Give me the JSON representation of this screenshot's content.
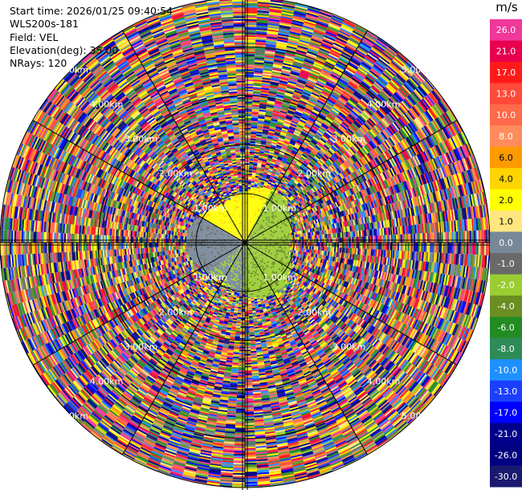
{
  "header": {
    "start_time": "Start time: 2026/01/25 09:40:54",
    "instrument": "WLS200s-181",
    "field": "Field: VEL",
    "elevation": "Elevation(deg): 35.00",
    "nrays": "NRays: 120"
  },
  "colorbar": {
    "units": "m/s",
    "levels": [
      {
        "label": "26.0",
        "color": "#f0379a"
      },
      {
        "label": "21.0",
        "color": "#e8004f"
      },
      {
        "label": "17.0",
        "color": "#ff1a1a"
      },
      {
        "label": "13.0",
        "color": "#ff4a3a"
      },
      {
        "label": "10.0",
        "color": "#ff6a4a"
      },
      {
        "label": "8.0",
        "color": "#ff8c5a"
      },
      {
        "label": "6.0",
        "color": "#ff9a00"
      },
      {
        "label": "4.0",
        "color": "#ffd400"
      },
      {
        "label": "2.0",
        "color": "#ffff00"
      },
      {
        "label": "1.0",
        "color": "#ffe680"
      },
      {
        "label": "0.0",
        "color": "#778899"
      },
      {
        "label": "-1.0",
        "color": "#696969"
      },
      {
        "label": "-2.0",
        "color": "#9acd32"
      },
      {
        "label": "-4.0",
        "color": "#6b8e23"
      },
      {
        "label": "-6.0",
        "color": "#228b22"
      },
      {
        "label": "-8.0",
        "color": "#2e8b57"
      },
      {
        "label": "-10.0",
        "color": "#1e90ff"
      },
      {
        "label": "-13.0",
        "color": "#1c3fff"
      },
      {
        "label": "-17.0",
        "color": "#0000ff"
      },
      {
        "label": "-21.0",
        "color": "#00008b"
      },
      {
        "label": "-26.0",
        "color": "#000080"
      },
      {
        "label": "-30.0",
        "color": "#191970"
      }
    ]
  },
  "chart_data": {
    "type": "heatmap",
    "title": "",
    "field": "VEL",
    "units": "m/s",
    "elevation_deg": 35.0,
    "nrays": 120,
    "range_ring_labels": [
      "1.00km",
      "2.00km",
      "3.00km",
      "4.00km",
      "5.00km"
    ],
    "range_rings_km": [
      1,
      2,
      3,
      4,
      5
    ],
    "max_range_km": 5.0,
    "grid": true,
    "description_regions": [
      {
        "sector": "north-west / north",
        "range_km": [
          0,
          1.0
        ],
        "velocity": "positive ~1 to 2 m/s (yellow)"
      },
      {
        "sector": "east / south",
        "range_km": [
          0,
          1.0
        ],
        "velocity": "negative ~ -2 to -4 m/s (green)"
      },
      {
        "sector": "south-west",
        "range_km": [
          0,
          1.0
        ],
        "velocity": "~0 to -1 m/s (grey)"
      },
      {
        "sector": "all",
        "range_km": [
          1.2,
          5.0
        ],
        "velocity": "noise (random velocities)"
      }
    ]
  }
}
